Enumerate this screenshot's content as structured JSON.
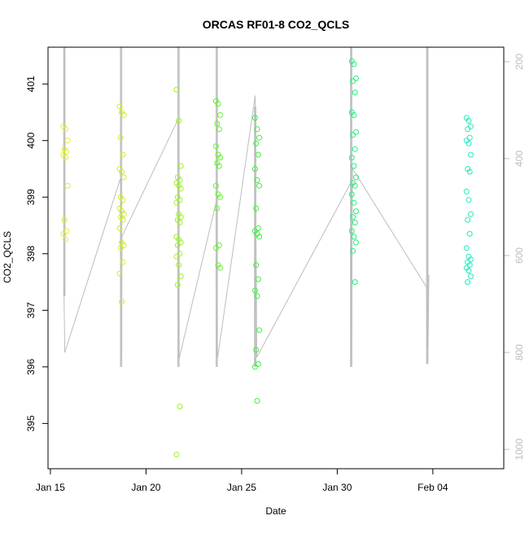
{
  "chart_data": {
    "type": "scatter",
    "title": "ORCAS RF01-8 CO2_QCLS",
    "xlabel": "Date",
    "ylabel": "CO2_QCLS",
    "x_ticks": [
      "Jan 15",
      "Jan 20",
      "Jan 25",
      "Jan 30",
      "Feb 04"
    ],
    "y_ticks": [
      395,
      396,
      397,
      398,
      399,
      400,
      401
    ],
    "y2_ticks": [
      200,
      400,
      600,
      800,
      1000
    ],
    "xlim": [
      "2016-01-14T21:00",
      "2016-02-07T17:00"
    ],
    "ylim": [
      394.2,
      401.65
    ],
    "y2lim": [
      1040,
      170
    ],
    "y2_direction": "reversed",
    "grid": false,
    "legend": "none",
    "colors": {
      "pressure_line": "#bdbdbd",
      "RF01": "#e6ee2a",
      "RF02": "#cdf02a",
      "RF03": "#9ef22a",
      "RF04": "#64f22e",
      "RF05": "#3cf23c",
      "RF06": "#22f07a",
      "RF07": "#22e8c0",
      "RF08": "#18e8d8"
    },
    "series": [
      {
        "flight": "RF01",
        "date": "2016-01-15T19:00",
        "values": [
          400.25,
          400.2,
          400.0,
          399.85,
          399.8,
          399.75,
          399.7,
          399.2,
          398.6,
          398.4,
          398.35,
          398.25
        ]
      },
      {
        "flight": "RF02",
        "date": "2016-01-18T17:30",
        "values": [
          400.6,
          400.5,
          400.45,
          400.05,
          399.75,
          399.5,
          399.45,
          399.35,
          399.0,
          398.95,
          398.8,
          398.75,
          398.7,
          398.65,
          398.6,
          398.45,
          398.2,
          398.15,
          398.1,
          397.85,
          397.65,
          397.15
        ]
      },
      {
        "flight": "RF03",
        "date": "2016-01-21T17:00",
        "values": [
          400.9,
          400.35,
          399.55,
          399.35,
          399.3,
          399.25,
          399.2,
          399.15,
          399.0,
          398.95,
          398.9,
          398.7,
          398.65,
          398.6,
          398.55,
          398.3,
          398.25,
          398.2,
          398.15,
          398.0,
          397.95,
          397.8,
          397.6,
          397.45,
          395.3,
          394.45
        ]
      },
      {
        "flight": "RF04",
        "date": "2016-01-23T18:30",
        "values": [
          400.7,
          400.65,
          400.45,
          400.3,
          400.2,
          399.9,
          399.75,
          399.7,
          399.6,
          399.55,
          399.2,
          399.05,
          399.0,
          398.8,
          398.15,
          398.1,
          397.8,
          397.75
        ]
      },
      {
        "flight": "RF05",
        "date": "2016-01-25T19:30",
        "values": [
          400.4,
          400.2,
          400.05,
          399.95,
          399.75,
          399.5,
          399.3,
          399.2,
          398.8,
          398.45,
          398.4,
          398.35,
          398.3,
          397.8,
          397.55,
          397.35,
          397.25,
          396.65,
          396.3,
          396.05,
          396.0,
          395.4
        ]
      },
      {
        "flight": "RF06",
        "date": "2016-01-30T21:00",
        "values": [
          401.4,
          401.35,
          401.1,
          401.05,
          400.85,
          400.5,
          400.45,
          400.15,
          400.1,
          399.85,
          399.7,
          399.55,
          399.35,
          399.25,
          399.2,
          399.05,
          398.9,
          398.75,
          398.65,
          398.55,
          398.4,
          398.3,
          398.2,
          398.05,
          397.5
        ]
      },
      {
        "flight": "RF07",
        "date": "2016-02-05T21:00",
        "values": [
          400.4,
          400.35,
          400.25,
          400.2,
          400.05,
          400.0,
          399.95,
          399.75,
          399.5,
          399.45,
          399.1,
          398.95,
          398.7,
          398.6,
          398.35,
          398.1,
          397.95,
          397.9,
          397.85,
          397.8,
          397.75,
          397.7,
          397.6,
          397.5
        ]
      }
    ],
    "pressure_line": {
      "points": [
        [
          "2016-01-15T17:00",
          670
        ],
        [
          "2016-01-15T18:00",
          800
        ],
        [
          "2016-01-18T16:00",
          440
        ],
        [
          "2016-01-18T17:00",
          805
        ],
        [
          "2016-01-18T18:00",
          560
        ],
        [
          "2016-01-21T16:00",
          320
        ],
        [
          "2016-01-21T17:00",
          805
        ],
        [
          "2016-01-21T18:00",
          810
        ],
        [
          "2016-01-23T16:00",
          490
        ],
        [
          "2016-01-23T17:00",
          805
        ],
        [
          "2016-01-23T18:00",
          810
        ],
        [
          "2016-01-25T17:00",
          270
        ],
        [
          "2016-01-25T19:00",
          810
        ],
        [
          "2016-01-30T17:00",
          450
        ],
        [
          "2016-01-30T18:00",
          805
        ],
        [
          "2016-01-30T19:00",
          420
        ],
        [
          "2016-02-03T16:00",
          665
        ],
        [
          "2016-02-03T17:00",
          795
        ],
        [
          "2016-02-03T18:00",
          790
        ],
        [
          "2016-02-03T19:00",
          640
        ]
      ]
    },
    "profile_bursts": [
      {
        "date": "2016-01-15T17:30",
        "ymin": 397.25,
        "ymax": 401.65
      },
      {
        "date": "2016-01-18T16:45",
        "ymin": 396.0,
        "ymax": 401.65
      },
      {
        "date": "2016-01-21T16:45",
        "ymin": 396.0,
        "ymax": 401.65
      },
      {
        "date": "2016-01-23T16:45",
        "ymin": 396.0,
        "ymax": 401.65
      },
      {
        "date": "2016-01-25T17:00",
        "ymin": 396.0,
        "ymax": 400.6
      },
      {
        "date": "2016-01-30T17:30",
        "ymin": 396.0,
        "ymax": 401.65
      },
      {
        "date": "2016-02-03T17:00",
        "ymin": 396.05,
        "ymax": 401.65
      }
    ]
  }
}
